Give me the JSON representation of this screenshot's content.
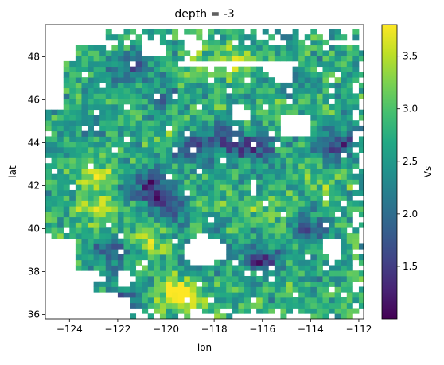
{
  "chart_data": {
    "type": "heatmap",
    "title": "depth = -3",
    "xlabel": "lon",
    "ylabel": "lat",
    "xlim": [
      -125,
      -111.8
    ],
    "ylim": [
      35.8,
      49.5
    ],
    "xticks": [
      -124,
      -122,
      -120,
      -118,
      -116,
      -114,
      -112
    ],
    "xtick_labels": [
      "−124",
      "−122",
      "−120",
      "−118",
      "−116",
      "−114",
      "−112"
    ],
    "yticks": [
      36,
      38,
      40,
      42,
      44,
      46,
      48
    ],
    "ytick_labels": [
      "36",
      "38",
      "40",
      "42",
      "44",
      "46",
      "48"
    ],
    "grid": false,
    "colorbar": {
      "label": "Vs",
      "colormap": "viridis",
      "vmin": 1.0,
      "vmax": 3.8,
      "ticks": [
        1.5,
        2.0,
        2.5,
        3.0,
        3.5
      ],
      "tick_labels": [
        "1.5",
        "2.0",
        "2.5",
        "3.0",
        "3.5"
      ]
    },
    "grid_resolution_deg": 0.25,
    "value_range": [
      1.0,
      3.8
    ],
    "mean_level": 2.7,
    "features": [
      {
        "lon": -123.0,
        "lat": 42.5,
        "value": 3.6
      },
      {
        "lon": -123.0,
        "lat": 41.0,
        "value": 3.7
      },
      {
        "lon": -121.0,
        "lat": 39.5,
        "value": 3.4
      },
      {
        "lon": -119.6,
        "lat": 37.0,
        "value": 3.7
      },
      {
        "lon": -119.0,
        "lat": 36.6,
        "value": 3.6
      },
      {
        "lon": -117.3,
        "lat": 47.8,
        "value": 3.6
      },
      {
        "lon": -118.5,
        "lat": 47.6,
        "value": 3.3
      },
      {
        "lon": -116.0,
        "lat": 45.5,
        "value": 3.2
      },
      {
        "lon": -119.5,
        "lat": 44.8,
        "value": 3.3
      },
      {
        "lon": -116.5,
        "lat": 41.0,
        "value": 3.2
      },
      {
        "lon": -113.5,
        "lat": 42.0,
        "value": 3.1
      },
      {
        "lon": -120.7,
        "lat": 42.0,
        "value": 1.3
      },
      {
        "lon": -121.7,
        "lat": 36.6,
        "value": 1.5
      },
      {
        "lon": -119.0,
        "lat": 43.8,
        "value": 1.4
      },
      {
        "lon": -117.5,
        "lat": 44.2,
        "value": 1.3
      },
      {
        "lon": -116.3,
        "lat": 43.8,
        "value": 1.4
      },
      {
        "lon": -116.0,
        "lat": 38.6,
        "value": 1.3
      },
      {
        "lon": -120.0,
        "lat": 41.2,
        "value": 1.5
      },
      {
        "lon": -122.3,
        "lat": 39.0,
        "value": 1.6
      },
      {
        "lon": -112.8,
        "lat": 44.0,
        "value": 1.3
      },
      {
        "lon": -114.0,
        "lat": 40.0,
        "value": 1.5
      },
      {
        "lon": -121.5,
        "lat": 47.3,
        "value": 1.8
      },
      {
        "lon": -120.0,
        "lat": 46.0,
        "value": 2.0
      },
      {
        "lon": -123.5,
        "lat": 45.0,
        "value": 2.2
      },
      {
        "lon": -114.5,
        "lat": 46.5,
        "value": 2.3
      },
      {
        "lon": -118.0,
        "lat": 39.0,
        "value": 2.1
      },
      {
        "lon": -113.0,
        "lat": 38.5,
        "value": 2.5
      }
    ]
  }
}
